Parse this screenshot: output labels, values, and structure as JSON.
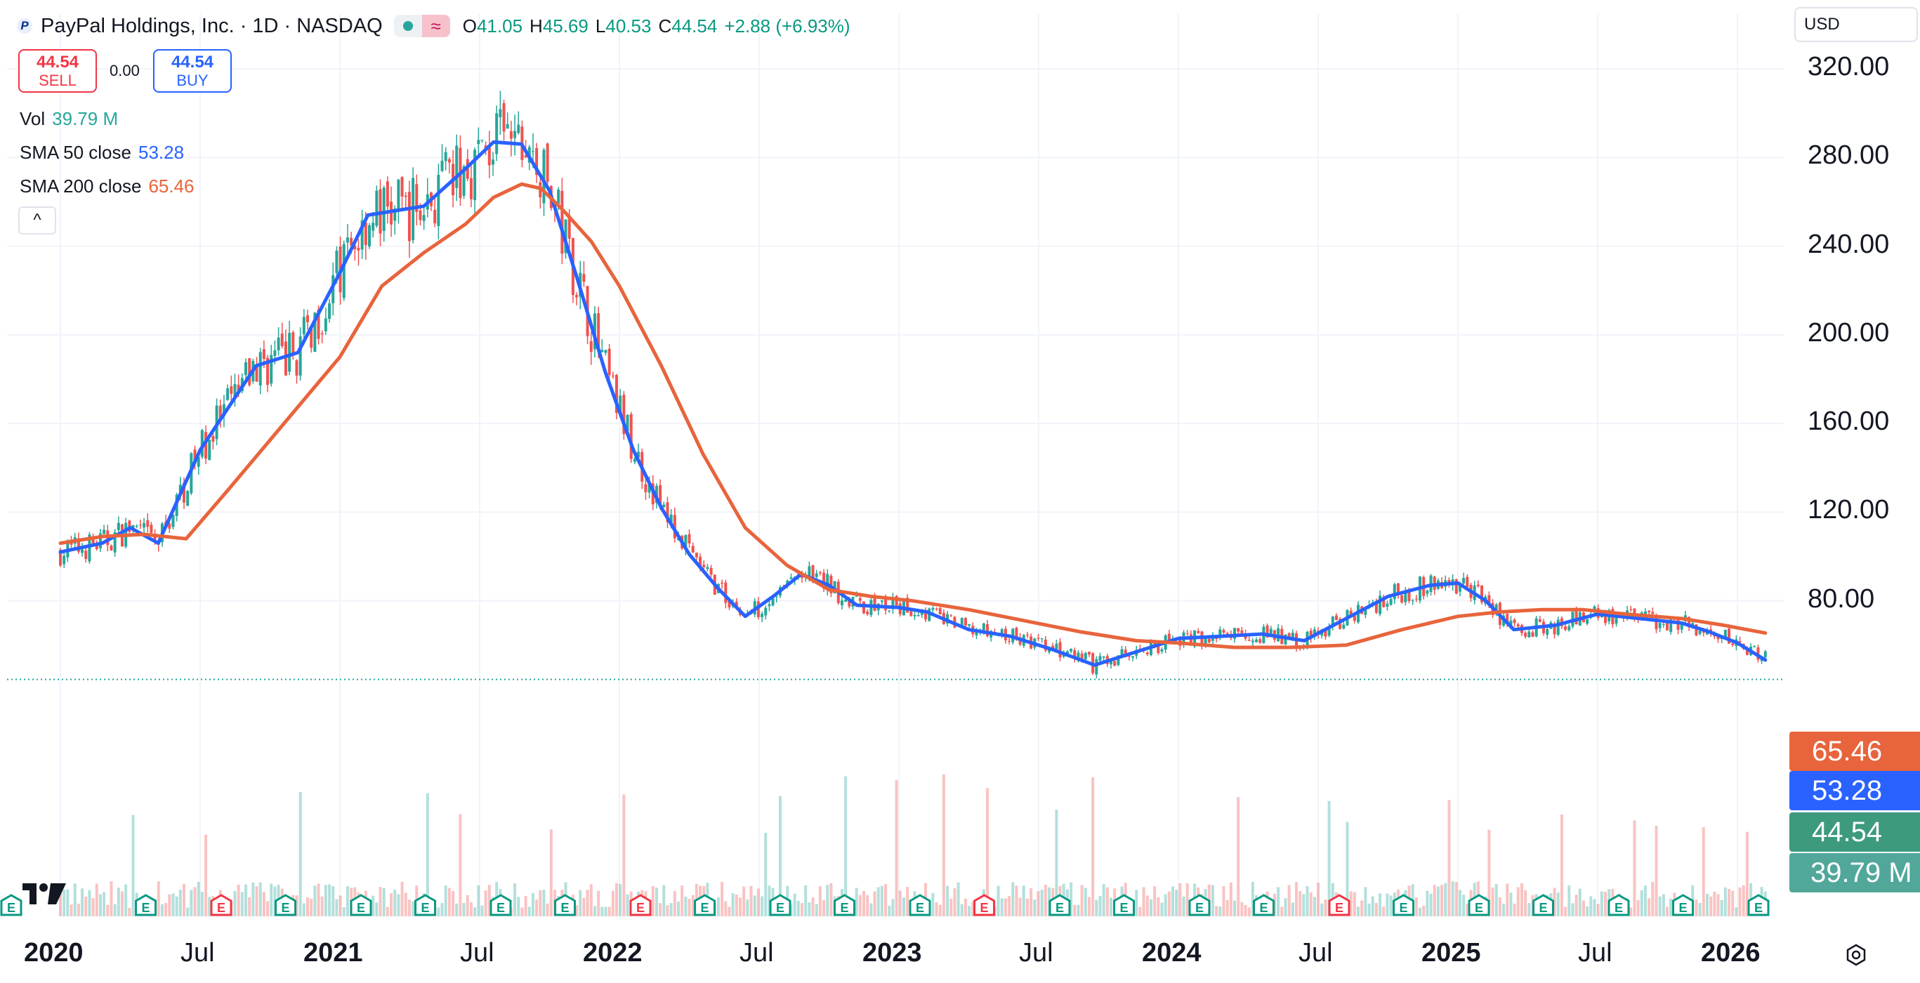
{
  "header": {
    "symbol_title": "PayPal Holdings, Inc. · 1D · NASDAQ",
    "logo_letter": "P",
    "wave_glyph": "≈",
    "ohlc": {
      "o_label": "O",
      "o_value": "41.05",
      "h_label": "H",
      "h_value": "45.69",
      "l_label": "L",
      "l_value": "40.53",
      "c_label": "C",
      "c_value": "44.54",
      "change": "+2.88 (+6.93%)"
    }
  },
  "trade": {
    "sell_price": "44.54",
    "sell_label": "SELL",
    "spread": "0.00",
    "buy_price": "44.54",
    "buy_label": "BUY"
  },
  "legend": {
    "vol_label": "Vol",
    "vol_value": "39.79 M",
    "sma50_label": "SMA 50 close",
    "sma50_value": "53.28",
    "sma200_label": "SMA 200 close",
    "sma200_value": "65.46",
    "collapse_glyph": "^"
  },
  "currency": {
    "label": "USD"
  },
  "badges": {
    "sma200": "65.46",
    "sma50": "53.28",
    "price": "44.54",
    "volume": "39.79 M"
  },
  "colors": {
    "up": "#26a69a",
    "down": "#ef5350",
    "sma50": "#2962ff",
    "sma200": "#e8643c",
    "badge_price": "#3d9a7e",
    "badge_volume": "#52a79b"
  },
  "chart_data": {
    "type": "line",
    "title": "",
    "xlabel": "",
    "ylabel": "",
    "ylim": [
      40,
      320
    ],
    "y_ticks": [
      "320.00",
      "280.00",
      "240.00",
      "200.00",
      "160.00",
      "120.00",
      "80.00"
    ],
    "x_ticks": [
      {
        "label": "2020",
        "year": true
      },
      {
        "label": "Jul",
        "year": false
      },
      {
        "label": "2021",
        "year": true
      },
      {
        "label": "Jul",
        "year": false
      },
      {
        "label": "2022",
        "year": true
      },
      {
        "label": "Jul",
        "year": false
      },
      {
        "label": "2023",
        "year": true
      },
      {
        "label": "Jul",
        "year": false
      },
      {
        "label": "2024",
        "year": true
      },
      {
        "label": "Jul",
        "year": false
      },
      {
        "label": "2025",
        "year": true
      },
      {
        "label": "Jul",
        "year": false
      },
      {
        "label": "2026",
        "year": true
      }
    ],
    "series": [
      {
        "name": "SMA 50 close",
        "x": [
          2020.0,
          2020.15,
          2020.25,
          2020.35,
          2020.5,
          2020.7,
          2020.85,
          2021.0,
          2021.1,
          2021.2,
          2021.3,
          2021.45,
          2021.55,
          2021.65,
          2021.75,
          2021.85,
          2021.95,
          2022.05,
          2022.15,
          2022.25,
          2022.35,
          2022.45,
          2022.55,
          2022.65,
          2022.75,
          2022.85,
          2023.0,
          2023.1,
          2023.25,
          2023.4,
          2023.55,
          2023.7,
          2023.85,
          2024.0,
          2024.15,
          2024.3,
          2024.45,
          2024.6,
          2024.75,
          2024.9,
          2025.0,
          2025.1,
          2025.2,
          2025.35,
          2025.5,
          2025.65,
          2025.8,
          2025.9,
          2026.0,
          2026.1
        ],
        "values": [
          102,
          106,
          113,
          106,
          148,
          186,
          192,
          228,
          254,
          256,
          258,
          275,
          287,
          286,
          265,
          225,
          183,
          148,
          122,
          101,
          86,
          73,
          82,
          92,
          87,
          78,
          77,
          75,
          67,
          64,
          58,
          51,
          57,
          63,
          64,
          65,
          62,
          72,
          82,
          87,
          88,
          80,
          67,
          69,
          74,
          72,
          70,
          66,
          61,
          53.28
        ]
      },
      {
        "name": "SMA 200 close",
        "x": [
          2020.0,
          2020.15,
          2020.3,
          2020.45,
          2020.6,
          2020.8,
          2021.0,
          2021.15,
          2021.3,
          2021.45,
          2021.55,
          2021.65,
          2021.72,
          2021.8,
          2021.9,
          2022.0,
          2022.15,
          2022.3,
          2022.45,
          2022.6,
          2022.75,
          2022.9,
          2023.05,
          2023.25,
          2023.45,
          2023.65,
          2023.85,
          2024.0,
          2024.2,
          2024.4,
          2024.6,
          2024.8,
          2025.0,
          2025.15,
          2025.3,
          2025.45,
          2025.6,
          2025.8,
          2025.95,
          2026.1
        ],
        "values": [
          106,
          109,
          110,
          108,
          130,
          160,
          190,
          222,
          237,
          250,
          262,
          268,
          266,
          256,
          242,
          222,
          186,
          146,
          113,
          96,
          85,
          82,
          80,
          76,
          71,
          66,
          62,
          61,
          59,
          59,
          60,
          67,
          73,
          75,
          76,
          76,
          74,
          72,
          69,
          65.46
        ]
      }
    ],
    "candles_x_range": [
      2020.0,
      2026.1
    ],
    "grid": true,
    "legend_position": "top-left"
  }
}
